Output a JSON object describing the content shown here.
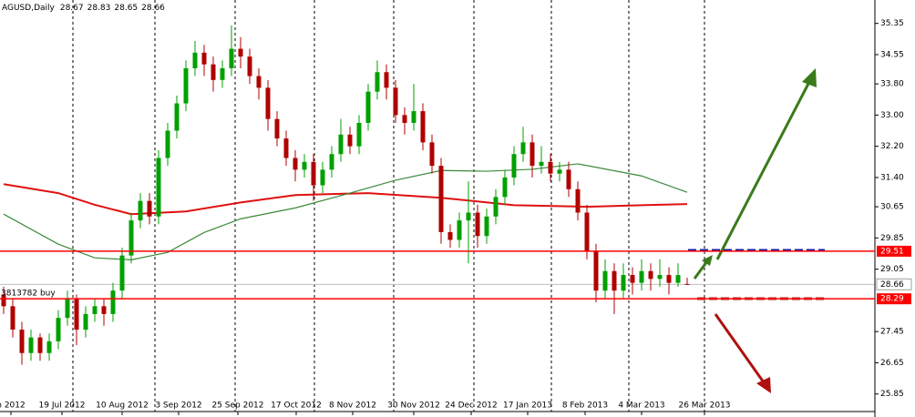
{
  "chart_data": {
    "type": "candlestick",
    "symbol": "AGUSD,Daily",
    "annotation": "3813782 buy",
    "xlim": [
      -0.4,
      95.6
    ],
    "ylim": [
      25.4,
      35.95
    ],
    "yticks": [
      35.35,
      34.55,
      {
        "value": 33.8,
        "label": "33.80"
      },
      {
        "value": 33,
        "label": "33.00"
      },
      {
        "value": 32.2,
        "label": "32.20"
      },
      {
        "value": 31.4,
        "label": "31.40"
      },
      30.65,
      29.85,
      29.05,
      27.45,
      26.65,
      25.85
    ],
    "xticks": [
      {
        "value": 0.8,
        "label": "n 2012"
      },
      {
        "value": 6.4,
        "label": "19 Jul 2012"
      },
      {
        "value": 13,
        "label": "10 Aug 2012"
      },
      {
        "value": 19.2,
        "label": "3 Sep 2012"
      },
      {
        "value": 25.7,
        "label": "25 Sep 2012"
      },
      {
        "value": 32.1,
        "label": "17 Oct 2012"
      },
      {
        "value": 38.3,
        "label": "8 Nov 2012"
      },
      {
        "value": 45,
        "label": "30 Nov 2012"
      },
      {
        "value": 51.3,
        "label": "24 Dec 2012"
      },
      {
        "value": 57.5,
        "label": "17 Jan 2013"
      },
      {
        "value": 63.8,
        "label": "8 Feb 2013"
      },
      {
        "value": 70,
        "label": "4 Mar 2013"
      },
      {
        "value": 76.9,
        "label": "26 Mar 2013"
      }
    ],
    "up_color": "#00a000",
    "down_color": "#b00000",
    "candles": [
      [
        28.4,
        28.6,
        27.9,
        28.1
      ],
      [
        28.1,
        28.3,
        27.3,
        27.5
      ],
      [
        27.5,
        27.7,
        26.6,
        26.9
      ],
      [
        26.9,
        27.5,
        26.7,
        27.3
      ],
      [
        27.3,
        27.4,
        26.7,
        26.9
      ],
      [
        26.9,
        27.4,
        26.7,
        27.2
      ],
      [
        27.2,
        28.0,
        27.0,
        27.8
      ],
      [
        27.8,
        28.5,
        27.6,
        28.3
      ],
      [
        28.3,
        28.4,
        27.1,
        27.5
      ],
      [
        27.5,
        28.1,
        27.3,
        27.9
      ],
      [
        27.9,
        28.3,
        27.7,
        28.1
      ],
      [
        28.1,
        28.3,
        27.6,
        27.9
      ],
      [
        27.9,
        28.7,
        27.7,
        28.5
      ],
      [
        28.5,
        29.6,
        28.3,
        29.4
      ],
      [
        29.4,
        30.5,
        29.2,
        30.3
      ],
      [
        30.3,
        31.0,
        30.1,
        30.8
      ],
      [
        30.8,
        31.0,
        30.2,
        30.4
      ],
      [
        30.4,
        32.1,
        30.2,
        31.9
      ],
      [
        31.9,
        32.8,
        31.7,
        32.6
      ],
      [
        32.6,
        33.5,
        32.4,
        33.3
      ],
      [
        33.3,
        34.4,
        33.1,
        34.2
      ],
      [
        34.2,
        34.9,
        34.0,
        34.6
      ],
      [
        34.6,
        34.8,
        34.0,
        34.3
      ],
      [
        34.3,
        34.5,
        33.6,
        33.9
      ],
      [
        33.9,
        34.4,
        33.7,
        34.2
      ],
      [
        34.2,
        35.3,
        34.0,
        34.7
      ],
      [
        34.7,
        35.0,
        34.2,
        34.5
      ],
      [
        34.5,
        34.7,
        33.8,
        34.0
      ],
      [
        34.0,
        34.2,
        33.4,
        33.7
      ],
      [
        33.7,
        33.9,
        32.6,
        32.9
      ],
      [
        32.9,
        33.1,
        32.2,
        32.4
      ],
      [
        32.4,
        32.6,
        31.7,
        31.9
      ],
      [
        31.9,
        32.1,
        31.3,
        31.6
      ],
      [
        31.6,
        32.0,
        31.4,
        31.8
      ],
      [
        31.8,
        32.0,
        30.8,
        31.2
      ],
      [
        31.2,
        31.8,
        31.0,
        31.6
      ],
      [
        31.6,
        32.2,
        31.4,
        32.0
      ],
      [
        32.0,
        32.9,
        31.8,
        32.5
      ],
      [
        32.5,
        32.7,
        32.0,
        32.2
      ],
      [
        32.2,
        33.0,
        32.0,
        32.8
      ],
      [
        32.8,
        33.8,
        32.6,
        33.6
      ],
      [
        33.6,
        34.4,
        33.4,
        34.1
      ],
      [
        34.1,
        34.3,
        33.4,
        33.7
      ],
      [
        33.7,
        33.9,
        32.8,
        33.0
      ],
      [
        33.0,
        33.2,
        32.5,
        32.8
      ],
      [
        32.8,
        33.8,
        32.6,
        33.1
      ],
      [
        33.1,
        33.3,
        32.1,
        32.3
      ],
      [
        32.3,
        32.5,
        31.5,
        31.7
      ],
      [
        31.7,
        31.9,
        29.7,
        30.0
      ],
      [
        30.0,
        30.2,
        29.6,
        29.8
      ],
      [
        29.8,
        30.5,
        29.6,
        30.3
      ],
      [
        30.3,
        31.3,
        29.2,
        30.5
      ],
      [
        30.5,
        30.7,
        29.6,
        29.9
      ],
      [
        29.9,
        30.6,
        29.7,
        30.4
      ],
      [
        30.4,
        31.1,
        30.2,
        30.9
      ],
      [
        30.9,
        31.6,
        30.7,
        31.4
      ],
      [
        31.4,
        32.2,
        31.2,
        32.0
      ],
      [
        32.0,
        32.7,
        31.8,
        32.3
      ],
      [
        32.3,
        32.5,
        31.4,
        31.7
      ],
      [
        31.7,
        32.2,
        31.5,
        31.8
      ],
      [
        31.8,
        32.0,
        31.3,
        31.5
      ],
      [
        31.5,
        31.8,
        31.3,
        31.6
      ],
      [
        31.6,
        31.8,
        30.9,
        31.1
      ],
      [
        31.1,
        31.3,
        30.3,
        30.5
      ],
      [
        30.5,
        30.7,
        29.3,
        29.5
      ],
      [
        29.5,
        29.7,
        28.2,
        28.5
      ],
      [
        28.5,
        29.3,
        28.3,
        29.0
      ],
      [
        29.0,
        29.2,
        27.9,
        28.5
      ],
      [
        28.5,
        29.2,
        28.3,
        28.9
      ],
      [
        28.9,
        29.1,
        28.4,
        28.7
      ],
      [
        28.7,
        29.3,
        28.5,
        29.0
      ],
      [
        29.0,
        29.2,
        28.5,
        28.8
      ],
      [
        28.8,
        29.3,
        28.6,
        28.9
      ],
      [
        28.9,
        29.1,
        28.4,
        28.7
      ],
      [
        28.7,
        29.2,
        28.6,
        28.9
      ],
      [
        28.67,
        28.83,
        28.65,
        28.66
      ]
    ],
    "series": [
      {
        "color": "#e01010",
        "x": [
          0,
          6,
          10,
          14,
          20,
          26,
          32,
          40,
          48,
          56,
          64,
          70,
          75
        ],
        "values": [
          31.23,
          31.0,
          30.7,
          30.46,
          30.53,
          30.76,
          30.95,
          31.0,
          30.88,
          30.69,
          30.65,
          30.69,
          30.72
        ]
      },
      {
        "color": "#3a8a3a",
        "x": [
          0,
          6,
          10,
          14,
          18,
          22,
          26,
          32,
          38,
          43,
          48,
          53,
          58,
          63,
          70,
          75
        ],
        "values": [
          30.46,
          29.69,
          29.34,
          29.29,
          29.48,
          29.99,
          30.34,
          30.62,
          31.0,
          31.33,
          31.58,
          31.56,
          31.61,
          31.75,
          31.44,
          31.02
        ]
      }
    ],
    "levels": [
      {
        "value": 29.51,
        "color": "#ff0000"
      },
      {
        "value": 28.29,
        "color": "#ff0000"
      }
    ],
    "current_price": 28.66
  }
}
